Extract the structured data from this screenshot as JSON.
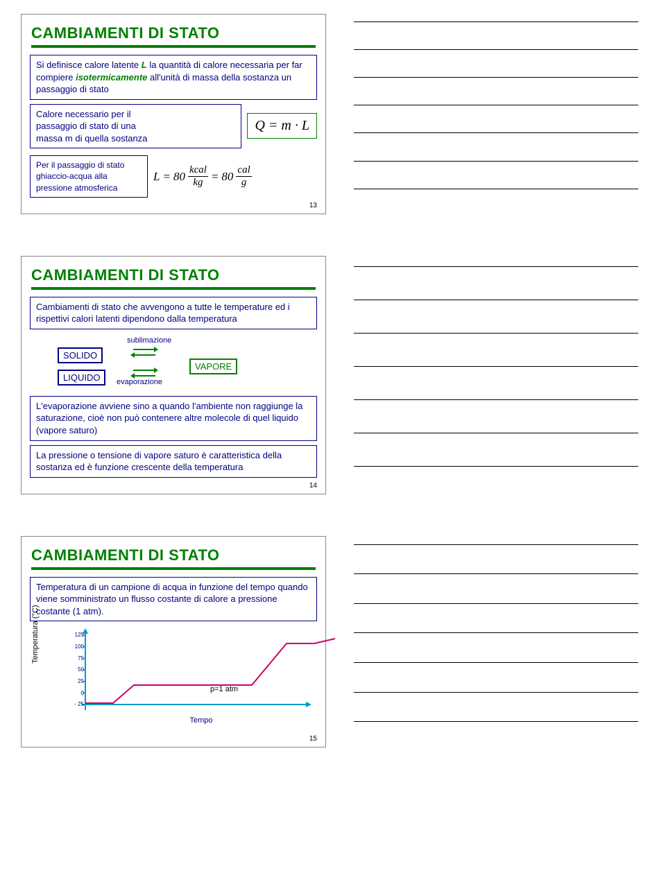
{
  "slide13": {
    "title": "CAMBIAMENTI DI STATO",
    "def": {
      "pre": "Si definisce calore latente ",
      "L": "L",
      "mid": " la quantità di calore necessaria per far compiere ",
      "iso": "isotermicamente",
      "post": " all'unità di massa della sostanza un passaggio di stato"
    },
    "calore_text": "Calore necessario per il\npassaggio di stato di una\nmassa m di quella sostanza",
    "formula_main": "Q = m · L",
    "ghiaccio_text": "Per il passaggio di stato\nghiaccio-acqua alla\npressione atmosferica",
    "formula_L": {
      "L": "L",
      "eq": "=",
      "v1": "80",
      "u1n": "kcal",
      "u1d": "kg",
      "v2": "80",
      "u2n": "cal",
      "u2d": "g"
    },
    "num": "13"
  },
  "slide14": {
    "title": "CAMBIAMENTI DI STATO",
    "intro": "Cambiamenti di stato che avvengono a tutte le temperature ed i rispettivi calori latenti dipendono dalla temperatura",
    "solido": "SOLIDO",
    "liquido": "LIQUIDO",
    "vapore": "VAPORE",
    "sublimazione": "sublimazione",
    "evaporazione": "evaporazione",
    "evap_text": "L'evaporazione avviene sino a quando l'ambiente non raggiunge la saturazione, cioè non può contenere altre molecole di quel liquido (vapore saturo)",
    "pressione_text": "La pressione o tensione di vapore saturo è caratteristica della sostanza ed è funzione crescente della temperatura",
    "num": "14"
  },
  "slide15": {
    "title": "CAMBIAMENTI DI STATO",
    "intro": "Temperatura di un campione di acqua in funzione del tempo quando viene somministrato un flusso costante di calore a pressione costante (1 atm).",
    "chart": {
      "ylabel": "Temperatura (°C)",
      "xlabel": "Tempo",
      "annotation": "p=1 atm",
      "yticks": [
        "125",
        "100",
        "75",
        "50",
        "25",
        "0",
        "- 25"
      ],
      "axis_color": "#0099cc",
      "line_color": "#cc0066",
      "tick_color": "#000080",
      "points": [
        [
          0,
          2
        ],
        [
          15,
          2
        ],
        [
          40,
          2
        ],
        [
          70,
          28
        ],
        [
          170,
          28
        ],
        [
          240,
          28
        ],
        [
          290,
          88
        ],
        [
          330,
          88
        ],
        [
          360,
          95
        ]
      ]
    },
    "num": "15"
  },
  "notes_count": 7
}
